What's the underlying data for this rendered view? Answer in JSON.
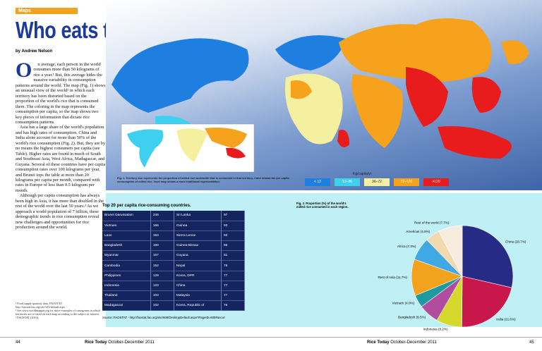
{
  "header": {
    "section": "Maps",
    "title": "Who eats the most rice?",
    "byline": "by Andrew Nelson"
  },
  "article": {
    "drop_cap": "O",
    "paragraphs": [
      "n average, each person in the world consumes more than 50 kilograms of rice a year.¹ But, this average hides the massive variability in consumption patterns around the world. The map (Fig. 1) shows an unusual view of the world² in which each territory has been distorted based on the proportion of the world's rice that is consumed there. The coloring in the map represents the consumption per capita, so the map shows two key pieces of information that dictate rice consumption patterns.",
      "Asia has a large share of the world's population and has high rates of consumption. China and India alone account for more than 50% of the world's rice consumption (Fig. 2). But, they are by no means the highest consumers per capita (see Table). Higher rates are found in much of South and Southeast Asia, West Africa, Madagascar, and Guyana. Several of these countries have per capita consumption rates over 100 kilograms per year, and Brunei tops the table at more than 20 kilograms per capita per month, compared with rates in Europe of less than 0.5 kilogram per month.",
      "Although per capita consumption has always been high in Asia, it has more than doubled in the rest of the world over the last 50 years.³ As we approach a world population of 7 billion, these demographic trends in rice consumption reveal new challenges and opportunities for rice production around the world."
    ],
    "footnotes": [
      "¹ Food supply quantity data, FAOSTAT: http://faostat.fao.org/site/345/default.aspx",
      "² See www.worldmapper.org for more examples of cartograms in which territories are re-sized on each map according to the subject of interest.",
      "³ FAOSTAT (2010)."
    ]
  },
  "map": {
    "caption": "Fig. 1. Territory size represents the proportion of milled rice worldwide that is consumed in that territory. Color shows the per capita consumption of milled rice. Inset map shows a more traditional representation.",
    "legend": {
      "title": "Kg/capita/yr",
      "items": [
        {
          "label": "< 12",
          "color": "#1f7fe0"
        },
        {
          "label": "12–36",
          "color": "#3fd0f0"
        },
        {
          "label": "36–72",
          "color": "#f4f0a0"
        },
        {
          "label": "72–120",
          "color": "#f7a21c"
        },
        {
          "label": ">120",
          "color": "#e81c1c"
        }
      ]
    }
  },
  "table": {
    "title": "Top 20 per capita rice-consuming countries.",
    "rows": [
      [
        "Brunei Darussalam",
        245,
        "Sri Lanka",
        97
      ],
      [
        "Vietnam",
        166,
        "Guinea",
        93
      ],
      [
        "Laos",
        163,
        "Sierra Leone",
        92
      ],
      [
        "Bangladesh",
        160,
        "Guinea-Bissau",
        85
      ],
      [
        "Myanmar",
        157,
        "Guyana",
        81
      ],
      [
        "Cambodia",
        152,
        "Nepal",
        78
      ],
      [
        "Philippines",
        129,
        "Korea, DPR",
        77
      ],
      [
        "Indonesia",
        123,
        "China",
        77
      ],
      [
        "Thailand",
        103,
        "Malaysia",
        77
      ],
      [
        "Madagascar",
        102,
        "Korea, Republic of",
        76
      ]
    ],
    "source": "Source: FAOSTAT - http://faostat.fao.org/site/608/DesktopDefault.aspx?PageID=608#ancor"
  },
  "chart_data": {
    "type": "pie",
    "title": "Fig. 2. Proportion (%) of the world's milled rice consumed in each region.",
    "categories": [
      "China",
      "India",
      "Indonesia",
      "Bangladesh",
      "Vietnam",
      "Rest of Asia",
      "Africa",
      "Americas",
      "Rest of the world"
    ],
    "values": [
      28.7,
      21.6,
      8.2,
      6.5,
      4.0,
      11.7,
      7.3,
      4.6,
      7.7
    ],
    "value_labels": [
      "(28.7%)",
      "(21.6%)",
      "(8.2%)",
      "(6.5%)",
      "(4.0%)",
      "(11.7%)",
      "(7.3%)",
      "(4.6%)",
      "(7.7%)"
    ],
    "colors": [
      "#262c86",
      "#c8174a",
      "#d6d82c",
      "#b24c9e",
      "#1b9aa2",
      "#f2a21e",
      "#40a8e2",
      "#f3d9b0",
      "#f7ece0"
    ]
  },
  "footer": {
    "left_page": "44",
    "right_page": "45",
    "magazine": "Rice Today",
    "issue": "October-December 2011"
  }
}
